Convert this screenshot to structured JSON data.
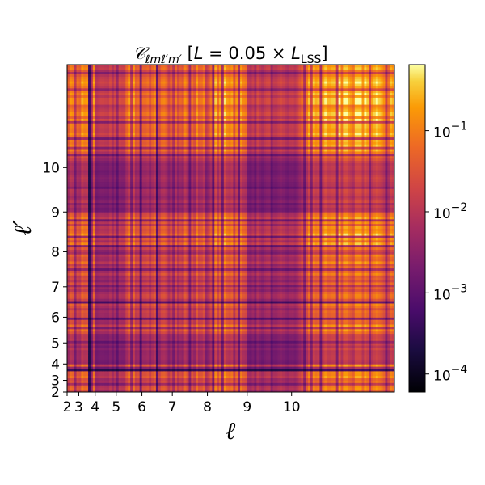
{
  "chart_data": {
    "type": "heatmap",
    "title": "C_{ℓmℓ′m′} [L = 0.05 × L_LSS]",
    "title_parts": {
      "symbol": "𝒞",
      "subscript": "ℓmℓ′m′",
      "bracket_open": "[",
      "L_var": "L",
      "equals": " = 0.05 × ",
      "L2_var": "L",
      "L2_subscript": "LSS",
      "bracket_close": "]"
    },
    "xlabel": "ℓ",
    "ylabel": "ℓ′",
    "xticks": [
      2,
      3,
      4,
      5,
      6,
      7,
      8,
      9,
      10
    ],
    "yticks": [
      2,
      3,
      4,
      5,
      6,
      7,
      8,
      9,
      10
    ],
    "axis_range": {
      "ell_min": 2,
      "ell_max": 11
    },
    "colormap": "inferno",
    "color_scale": "log",
    "colorbar": {
      "ticks": [
        {
          "base": "10",
          "exp": "−4",
          "value": 0.0001
        },
        {
          "base": "10",
          "exp": "−3",
          "value": 0.001
        },
        {
          "base": "10",
          "exp": "−2",
          "value": 0.01
        },
        {
          "base": "10",
          "exp": "−1",
          "value": 0.1
        }
      ],
      "vmin": 6e-05,
      "vmax": 0.65
    },
    "grid": false
  }
}
